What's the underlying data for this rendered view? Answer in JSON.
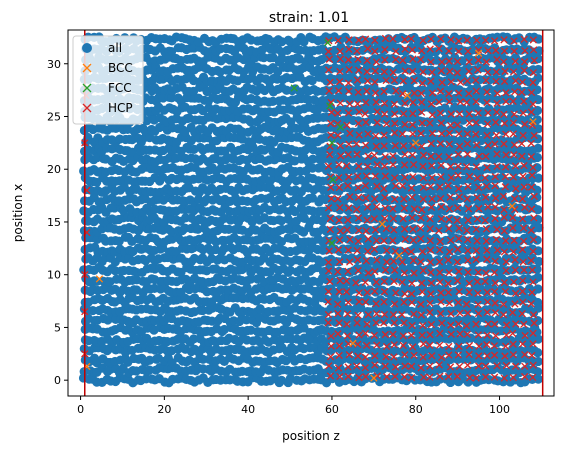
{
  "chart_data": {
    "type": "scatter",
    "title": "strain: 1.01",
    "xlabel": "position z",
    "ylabel": "position x",
    "xlim": [
      -3,
      113
    ],
    "ylim": [
      -1.5,
      33.2
    ],
    "xticks": [
      0,
      20,
      40,
      60,
      80,
      100
    ],
    "yticks": [
      0,
      5,
      10,
      15,
      20,
      25,
      30
    ],
    "legend": {
      "position": "upper-left",
      "entries": [
        {
          "name": "all",
          "marker": "circle",
          "color": "#1f77b4"
        },
        {
          "name": "BCC",
          "marker": "x",
          "color": "#ff7f0e"
        },
        {
          "name": "FCC",
          "marker": "x",
          "color": "#2ca02c"
        },
        {
          "name": "HCP",
          "marker": "x",
          "color": "#d62728"
        }
      ]
    },
    "vlines": [
      {
        "x": 1,
        "color": "#c00000"
      },
      {
        "x": 110.3,
        "color": "#c00000"
      }
    ],
    "series": [
      {
        "name": "all",
        "region": {
          "z": [
            1,
            110
          ],
          "x": [
            0,
            32.5
          ]
        }
      },
      {
        "name": "BCC",
        "points": [
          [
            1.5,
            1.3
          ],
          [
            4.5,
            9.6
          ],
          [
            65,
            3.5
          ],
          [
            70,
            0.2
          ],
          [
            72,
            14.8
          ],
          [
            76,
            11.8
          ],
          [
            78,
            27.0
          ],
          [
            80,
            22.5
          ],
          [
            95,
            31.0
          ],
          [
            103,
            16.5
          ],
          [
            108,
            24.5
          ]
        ]
      },
      {
        "name": "FCC",
        "points": [
          [
            51,
            27.7
          ],
          [
            59,
            32.0
          ],
          [
            59.5,
            26.0
          ],
          [
            60,
            22.5
          ],
          [
            60.2,
            19.0
          ],
          [
            62,
            24.0
          ],
          [
            60,
            13.0
          ]
        ]
      },
      {
        "name": "HCP",
        "region": {
          "z": [
            59,
            110
          ],
          "x": [
            0,
            32.5
          ]
        },
        "edge_points": [
          [
            1,
            2.5
          ],
          [
            1,
            6.5
          ],
          [
            1,
            10.0
          ],
          [
            1.5,
            14.0
          ],
          [
            1.5,
            18.0
          ],
          [
            1,
            22.5
          ],
          [
            1.3,
            27.0
          ]
        ]
      }
    ]
  }
}
